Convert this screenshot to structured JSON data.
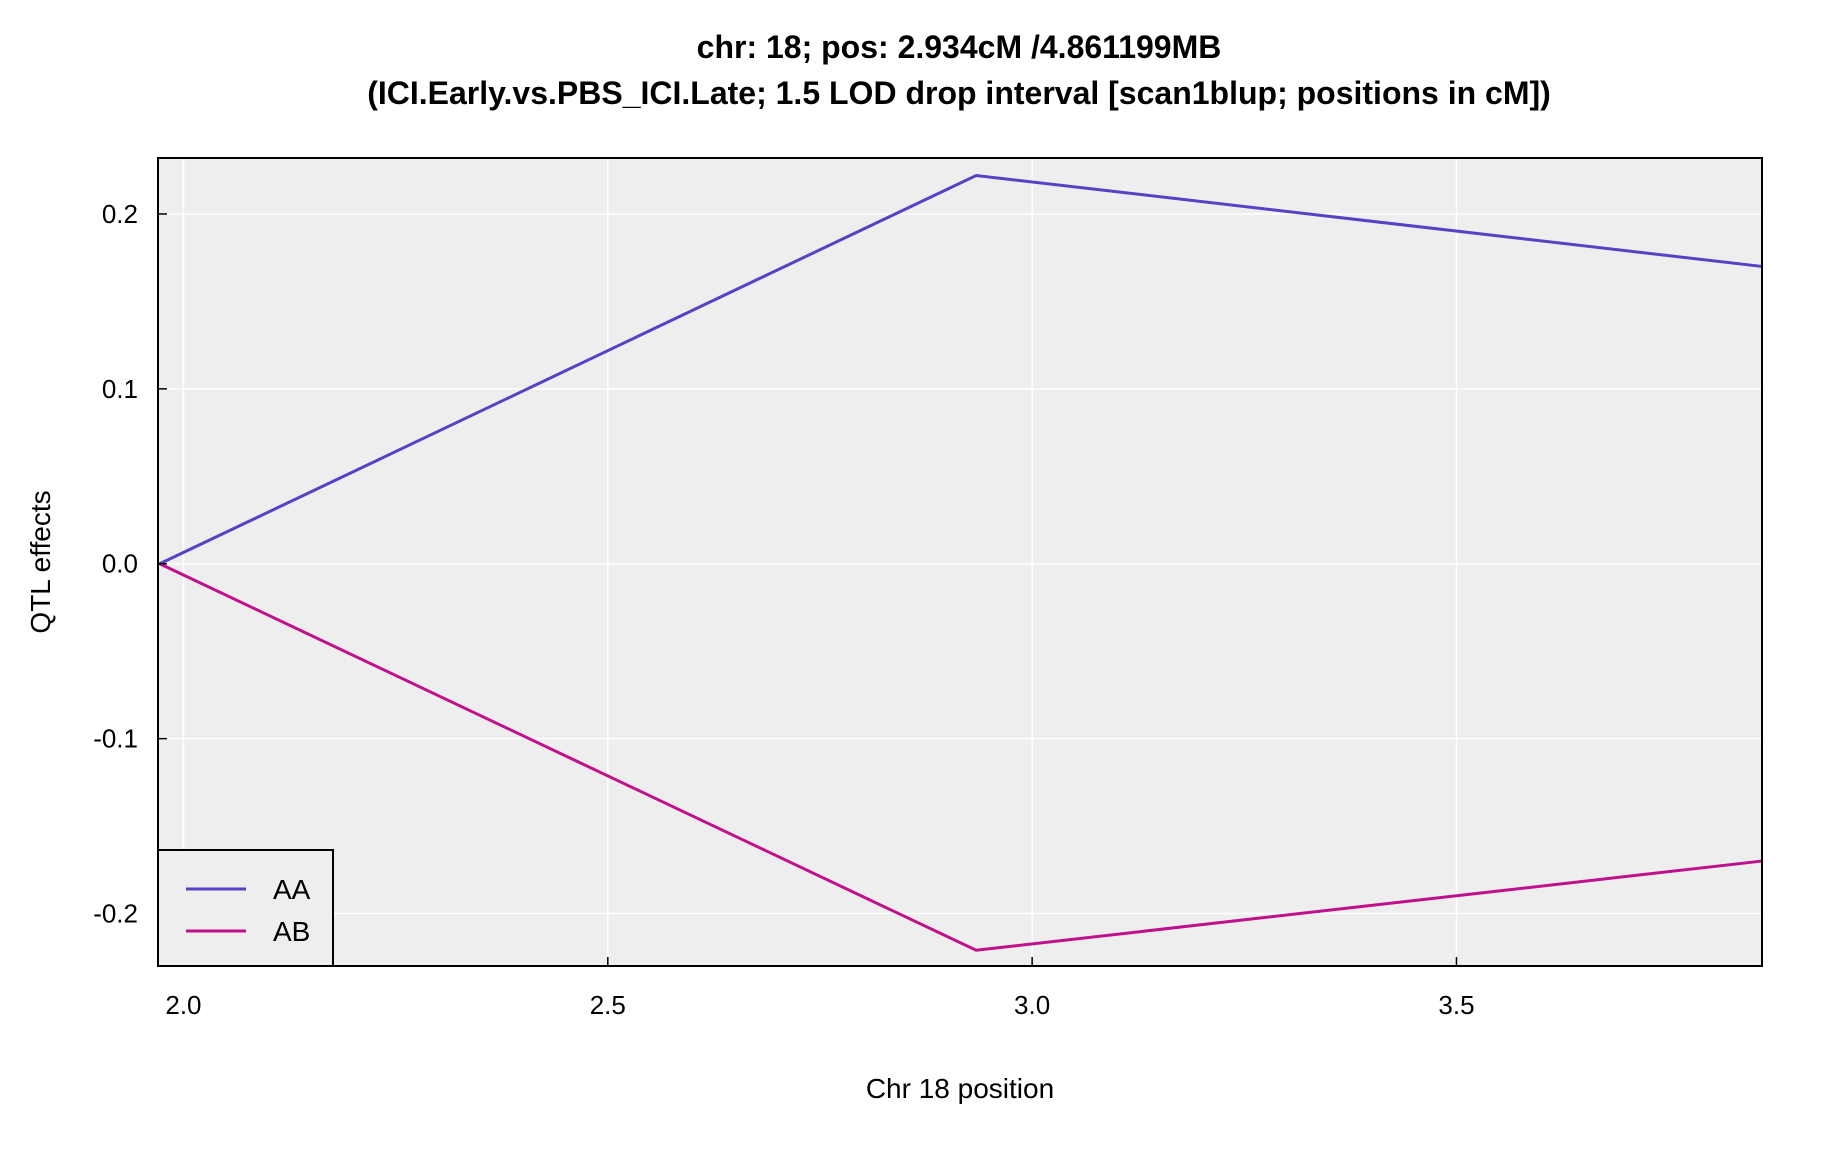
{
  "chart_data": {
    "type": "line",
    "title_line1": "chr: 18; pos: 2.934cM /4.861199MB",
    "title_line2": "(ICI.Early.vs.PBS_ICI.Late; 1.5 LOD drop interval [scan1blup; positions in cM])",
    "xlabel": "Chr 18 position",
    "ylabel": "QTL effects",
    "xlim": [
      1.97,
      3.86
    ],
    "ylim": [
      -0.23,
      0.232
    ],
    "xticks": [
      2.0,
      2.5,
      3.0,
      3.5
    ],
    "xtick_labels": [
      "2.0",
      "2.5",
      "3.0",
      "3.5"
    ],
    "yticks": [
      -0.2,
      -0.1,
      0.0,
      0.1,
      0.2
    ],
    "ytick_labels": [
      "-0.2",
      "-0.1",
      "0.0",
      "0.1",
      "0.2"
    ],
    "grid": true,
    "legend_position": "bottom-left",
    "x": [
      1.972,
      2.934,
      3.86
    ],
    "series": [
      {
        "name": "AA",
        "values": [
          0.0,
          0.222,
          0.17
        ],
        "color": "#5443c4"
      },
      {
        "name": "AB",
        "values": [
          0.0,
          -0.221,
          -0.17
        ],
        "color": "#c0108b"
      }
    ],
    "background_color": "#eeeeef",
    "grid_color": "#ffffff"
  }
}
